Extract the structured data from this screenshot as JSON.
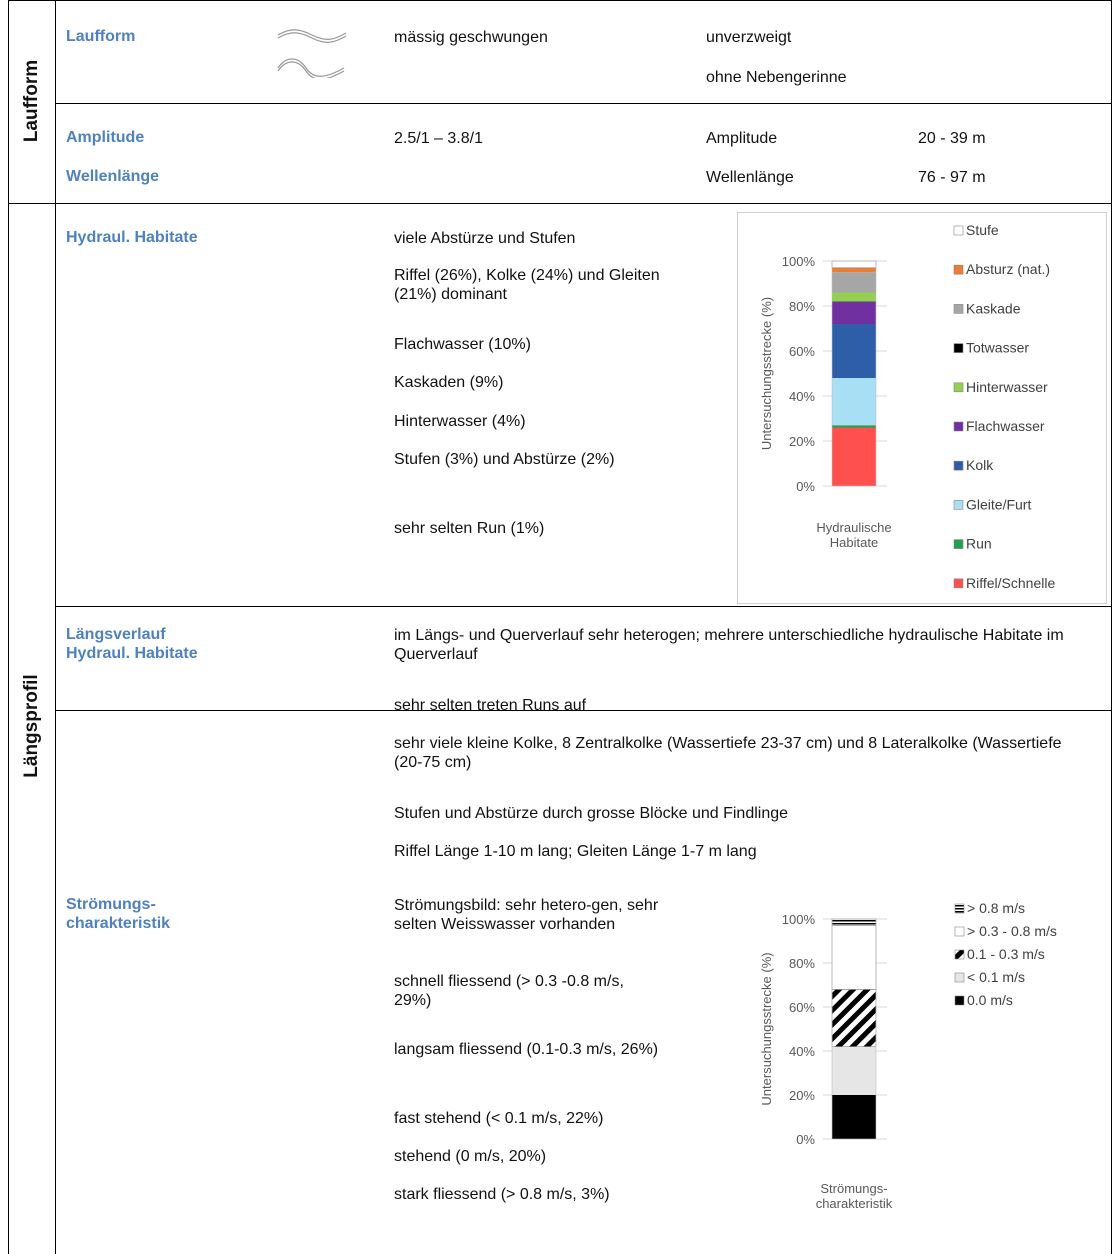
{
  "sections": {
    "laufform": "Laufform",
    "laengsprofil": "Längsprofil"
  },
  "rows": {
    "laufform": {
      "label": "Laufform",
      "value": "mässig geschwungen",
      "col3": [
        "unverzweigt",
        "ohne Nebengerinne"
      ]
    },
    "amplitude": {
      "label1": "Amplitude",
      "label2": "Wellenlänge",
      "value": "2.5/1 – 3.8/1",
      "k1": "Amplitude",
      "v1": "20 - 39 m",
      "k2": "Wellenlänge",
      "v2": "76 - 97 m"
    },
    "hydraul": {
      "label": "Hydraul. Habitate",
      "lines": [
        "viele Abstürze und Stufen",
        "Riffel (26%), Kolke (24%) und Gleiten (21%) dominant",
        "Flachwasser (10%)",
        "Kaskaden (9%)",
        "Hinterwasser (4%)",
        "Stufen (3%) und Abstürze (2%)",
        "sehr selten Run (1%)"
      ]
    },
    "laengsverlauf": {
      "label1": "Längsverlauf",
      "label2": "Hydraul. Habitate",
      "lines": [
        "im Längs- und Querverlauf sehr heterogen; mehrere unterschiedliche hydraulische Habitate im Querverlauf",
        "sehr selten treten Runs auf",
        "sehr viele kleine Kolke, 8 Zentralkolke (Wassertiefe 23-37 cm) und 8 Lateralkolke (Wassertiefe (20-75 cm)",
        "Stufen und Abstürze durch grosse Blöcke und Findlinge",
        "Riffel Länge 1-10 m lang; Gleiten Länge 1-7 m lang"
      ]
    },
    "stroemung": {
      "label1": "Strömungs-",
      "label2": "charakteristik",
      "lines": [
        "Strömungsbild: sehr hetero-gen, sehr selten Weisswasser vorhanden",
        "schnell fliessend (> 0.3 -0.8 m/s, 29%)",
        "langsam fliessend (0.1-0.3 m/s, 26%)",
        "fast stehend (< 0.1 m/s, 22%)",
        "stehend (0 m/s, 20%)",
        "stark fliessend (> 0.8 m/s, 3%)"
      ]
    }
  },
  "chart_data": [
    {
      "type": "bar",
      "stacked": true,
      "categories": [
        "Hydraulische Habitate"
      ],
      "xlabel": "Hydraulische Habitate",
      "ylabel": "Untersuchungsstrecke (%)",
      "ylim": [
        0,
        100
      ],
      "yticks": [
        "0%",
        "20%",
        "40%",
        "60%",
        "80%",
        "100%"
      ],
      "series": [
        {
          "name": "Riffel/Schnelle",
          "values": [
            26
          ],
          "color": "#ff5050"
        },
        {
          "name": "Run",
          "values": [
            1
          ],
          "color": "#22a050"
        },
        {
          "name": "Gleite/Furt",
          "values": [
            21
          ],
          "color": "#a8dff5"
        },
        {
          "name": "Kolk",
          "values": [
            24
          ],
          "color": "#2e5ea8"
        },
        {
          "name": "Flachwasser",
          "values": [
            10
          ],
          "color": "#7030a0"
        },
        {
          "name": "Hinterwasser",
          "values": [
            4
          ],
          "color": "#92d050"
        },
        {
          "name": "Totwasser",
          "values": [
            0
          ],
          "color": "#000000"
        },
        {
          "name": "Kaskade",
          "values": [
            9
          ],
          "color": "#a6a6a6"
        },
        {
          "name": "Absturz (nat.)",
          "values": [
            2
          ],
          "color": "#ed7d31"
        },
        {
          "name": "Stufe",
          "values": [
            3
          ],
          "color": "#ffffff"
        }
      ],
      "legend_order": [
        "Stufe",
        "Absturz (nat.)",
        "Kaskade",
        "Totwasser",
        "Hinterwasser",
        "Flachwasser",
        "Kolk",
        "Gleite/Furt",
        "Run",
        "Riffel/Schnelle"
      ],
      "legend": "right"
    },
    {
      "type": "bar",
      "stacked": true,
      "categories": [
        "Strömungscharakteristik"
      ],
      "xlabel": "Strömungs-charakteristik",
      "ylabel": "Untersuchungsstrecke (%)",
      "ylim": [
        0,
        100
      ],
      "yticks": [
        "0%",
        "20%",
        "40%",
        "60%",
        "80%",
        "100%"
      ],
      "series": [
        {
          "name": "0.0 m/s",
          "values": [
            20
          ],
          "color": "#000000"
        },
        {
          "name": "< 0.1 m/s",
          "values": [
            22
          ],
          "color": "#e6e6e6"
        },
        {
          "name": "0.1 - 0.3 m/s",
          "values": [
            26
          ],
          "color": "hatch"
        },
        {
          "name": "> 0.3 - 0.8 m/s",
          "values": [
            29
          ],
          "color": "#ffffff"
        },
        {
          "name": "> 0.8 m/s",
          "values": [
            3
          ],
          "color": "stripes"
        }
      ],
      "legend_order": [
        "> 0.8 m/s",
        "> 0.3 - 0.8 m/s",
        "0.1 - 0.3 m/s",
        "< 0.1 m/s",
        "0.0 m/s"
      ],
      "legend": "right"
    }
  ]
}
